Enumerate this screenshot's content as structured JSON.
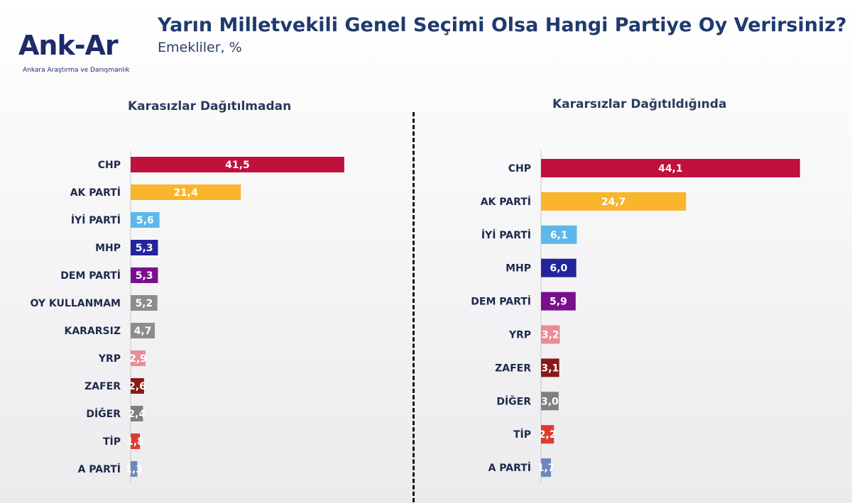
{
  "header": {
    "title": "Yarın Milletvekili Genel Seçimi Olsa Hangi Partiye Oy Verirsiniz?",
    "subtitle": "Emekliler, %"
  },
  "logo": {
    "name": "Ank-Ar",
    "tagline": "Ankara Araştırma ve Danışmanlık"
  },
  "chart_data": [
    {
      "type": "bar",
      "orientation": "horizontal",
      "title": "Karasızlar Dağıtılmadan",
      "categories": [
        "CHP",
        "AK PARTİ",
        "İYİ PARTİ",
        "MHP",
        "DEM PARTİ",
        "OY KULLANMAM",
        "KARARSIZ",
        "YRP",
        "ZAFER",
        "DİĞER",
        "TİP",
        "A PARTİ"
      ],
      "values": [
        41.5,
        21.4,
        5.6,
        5.3,
        5.3,
        5.2,
        4.7,
        2.9,
        2.6,
        2.4,
        1.8,
        1.3
      ],
      "value_labels": [
        "41,5",
        "21,4",
        "5,6",
        "5,3",
        "5,3",
        "5,2",
        "4,7",
        "2,9",
        "2,6",
        "2,4",
        "1,8",
        "1,3"
      ],
      "colors": [
        "#c0103c",
        "#f9b52c",
        "#5cb8ea",
        "#24249c",
        "#7a0f8c",
        "#8d8d8d",
        "#8d8d8d",
        "#e88c97",
        "#8a1a1a",
        "#7f7f7f",
        "#e03a2c",
        "#6b88ba"
      ]
    },
    {
      "type": "bar",
      "orientation": "horizontal",
      "title": "Kararsızlar Dağıtıldığında",
      "categories": [
        "CHP",
        "AK PARTİ",
        "İYİ PARTİ",
        "MHP",
        "DEM PARTİ",
        "YRP",
        "ZAFER",
        "DİĞER",
        "TİP",
        "A PARTİ"
      ],
      "values": [
        44.1,
        24.7,
        6.1,
        6.0,
        5.9,
        3.2,
        3.1,
        3.0,
        2.2,
        1.7
      ],
      "value_labels": [
        "44,1",
        "24,7",
        "6,1",
        "6,0",
        "5,9",
        "3,2",
        "3,1",
        "3,0",
        "2,2",
        "1,7"
      ],
      "colors": [
        "#c0103c",
        "#f9b52c",
        "#5cb8ea",
        "#24249c",
        "#7a0f8c",
        "#e88c97",
        "#8a1a1a",
        "#7f7f7f",
        "#e03a2c",
        "#6b88ba"
      ]
    }
  ]
}
